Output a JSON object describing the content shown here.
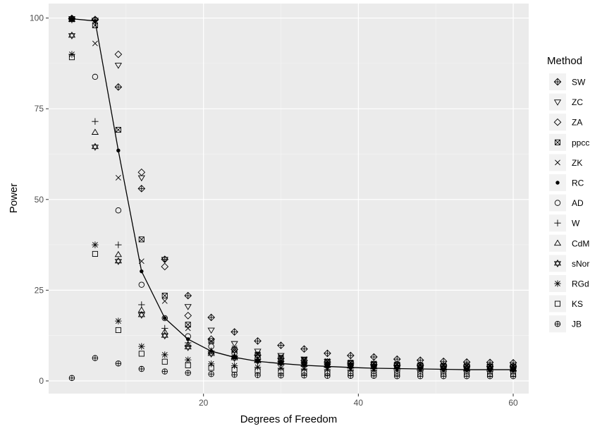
{
  "chart_data": {
    "type": "scatter",
    "title": "",
    "xlabel": "Degrees of Freedom",
    "ylabel": "Power",
    "xlim": [
      0,
      62
    ],
    "ylim": [
      -3.5,
      104
    ],
    "x_ticks": [
      20,
      40,
      60
    ],
    "y_ticks": [
      0,
      25,
      50,
      75,
      100
    ],
    "grid": true,
    "legend": {
      "title": "Method",
      "placement": "right"
    },
    "x": [
      3,
      6,
      9,
      12,
      15,
      18,
      21,
      24,
      27,
      30,
      33,
      36,
      39,
      42,
      45,
      48,
      51,
      54,
      57,
      60
    ],
    "series": [
      {
        "name": "SW",
        "shape": "diamond-plus",
        "values": [
          99.9,
          99.5,
          81,
          53,
          33.5,
          23.5,
          17.5,
          13.5,
          11,
          9.8,
          8.8,
          7.6,
          7,
          6.6,
          6,
          5.7,
          5.4,
          5.2,
          5.1,
          5
        ]
      },
      {
        "name": "ZC",
        "shape": "triangle-down",
        "values": [
          99.8,
          99.4,
          87,
          56,
          33.5,
          20.5,
          14,
          10.3,
          8.2,
          7,
          6,
          5.3,
          4.9,
          4.6,
          4.3,
          4.1,
          4,
          3.9,
          3.9,
          3.8
        ]
      },
      {
        "name": "ZA",
        "shape": "diamond",
        "values": [
          99.8,
          99.6,
          90,
          57.5,
          31.5,
          18,
          11.5,
          8.7,
          7.1,
          6.2,
          5.6,
          5.2,
          4.9,
          4.6,
          4.4,
          4.3,
          4.2,
          4.1,
          4,
          4
        ]
      },
      {
        "name": "ppcc",
        "shape": "square-x",
        "values": [
          99.7,
          98,
          69.2,
          39,
          23.5,
          15.5,
          11,
          8.5,
          7.2,
          6.3,
          5.7,
          5.3,
          5,
          4.7,
          4.5,
          4.3,
          4.2,
          4.1,
          4,
          3.9
        ]
      },
      {
        "name": "ZK",
        "shape": "cross",
        "values": [
          99.6,
          93,
          56,
          33,
          22,
          14.5,
          11,
          9,
          7.6,
          6.7,
          6,
          5.5,
          5.1,
          4.8,
          4.5,
          4.3,
          4.2,
          4.1,
          4,
          3.9
        ]
      },
      {
        "name": "RC",
        "shape": "dot",
        "values": [
          99.8,
          99.2,
          63.5,
          30.2,
          17.3,
          11.5,
          8.2,
          6.5,
          5.4,
          4.8,
          4.3,
          4,
          3.7,
          3.5,
          3.4,
          3.3,
          3.2,
          3.1,
          3.1,
          3.1
        ]
      },
      {
        "name": "AD",
        "shape": "circle",
        "values": [
          99.8,
          83.8,
          47,
          26.5,
          17.3,
          12.3,
          9.5,
          7.6,
          6.4,
          5.6,
          5,
          4.6,
          4.3,
          4,
          3.8,
          3.7,
          3.6,
          3.5,
          3.4,
          3.4
        ]
      },
      {
        "name": "W",
        "shape": "plus",
        "values": [
          99.5,
          71.5,
          37.5,
          21,
          14.5,
          10.5,
          8.3,
          6.9,
          6,
          5.3,
          4.9,
          4.5,
          4.3,
          4.1,
          3.9,
          3.8,
          3.7,
          3.6,
          3.5,
          3.5
        ]
      },
      {
        "name": "CdM",
        "shape": "triangle",
        "values": [
          99.6,
          68.5,
          34.8,
          19.5,
          13.5,
          10,
          8,
          6.7,
          5.8,
          5.2,
          4.8,
          4.4,
          4.2,
          4,
          3.8,
          3.7,
          3.6,
          3.5,
          3.5,
          3.4
        ]
      },
      {
        "name": "sNor",
        "shape": "star6",
        "values": [
          95.2,
          64.5,
          33,
          18.2,
          12.5,
          9.3,
          7.5,
          6.3,
          5.5,
          4.9,
          4.5,
          4.2,
          4,
          3.8,
          3.7,
          3.6,
          3.5,
          3.4,
          3.4,
          3.3
        ]
      },
      {
        "name": "RGd",
        "shape": "asterisk",
        "values": [
          90,
          37.5,
          16.5,
          9.5,
          7.2,
          5.8,
          4.7,
          4.2,
          3.8,
          3.5,
          3.3,
          3.1,
          3,
          2.9,
          2.8,
          2.8,
          2.7,
          2.7,
          2.6,
          2.6
        ]
      },
      {
        "name": "KS",
        "shape": "square",
        "values": [
          89.2,
          35,
          14,
          7.5,
          5.3,
          4.3,
          3.6,
          3.1,
          2.8,
          2.6,
          2.4,
          2.3,
          2.2,
          2.1,
          2.1,
          2,
          2,
          2,
          1.9,
          1.9
        ]
      },
      {
        "name": "JB",
        "shape": "circle-plus",
        "values": [
          0.8,
          6.3,
          4.8,
          3.3,
          2.6,
          2.2,
          1.9,
          1.7,
          1.6,
          1.5,
          1.5,
          1.4,
          1.4,
          1.4,
          1.3,
          1.3,
          1.3,
          1.3,
          1.3,
          1.3
        ]
      }
    ],
    "line": {
      "series": "RC",
      "color": "#000000"
    },
    "colors": {
      "panel": "#ebebeb",
      "grid_major": "#ffffff",
      "grid_minor": "#f5f5f5",
      "mark": "#000000",
      "legend_key_bg": "#f2f2f2"
    }
  }
}
